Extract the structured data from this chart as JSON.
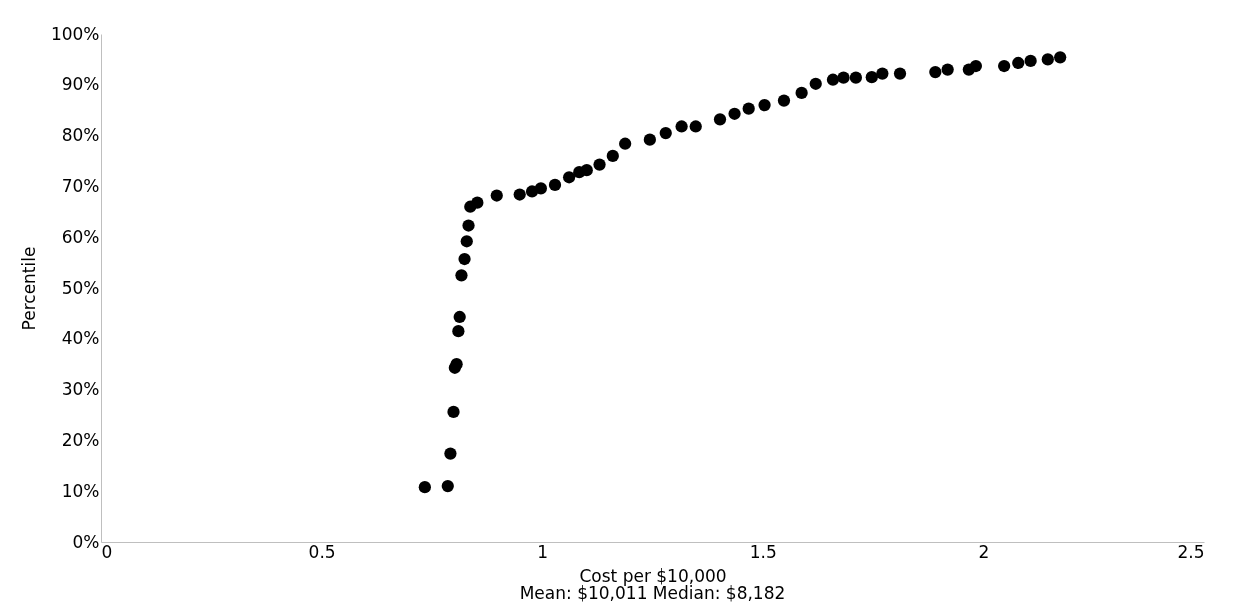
{
  "chart_data": {
    "type": "scatter",
    "xlabel": "Cost  per $10,000",
    "ylabel": "Percentile",
    "annotations": [
      "Mean: $10,011     Median: $8,182"
    ],
    "x": [
      0.734,
      0.786,
      0.792,
      0.799,
      0.802,
      0.806,
      0.81,
      0.813,
      0.817,
      0.824,
      0.829,
      0.833,
      0.837,
      0.853,
      0.897,
      0.949,
      0.977,
      0.997,
      1.029,
      1.061,
      1.084,
      1.101,
      1.13,
      1.16,
      1.188,
      1.244,
      1.28,
      1.316,
      1.348,
      1.403,
      1.436,
      1.468,
      1.504,
      1.548,
      1.588,
      1.62,
      1.659,
      1.683,
      1.711,
      1.747,
      1.771,
      1.811,
      1.891,
      1.919,
      1.967,
      1.983,
      2.047,
      2.079,
      2.107,
      2.146,
      2.174
    ],
    "series": [
      {
        "color": "#000000",
        "values": [
          10.8,
          11.0,
          17.4,
          25.6,
          34.3,
          35.0,
          41.5,
          44.3,
          52.5,
          55.7,
          59.2,
          62.3,
          66.0,
          66.8,
          68.2,
          68.4,
          69.0,
          69.6,
          70.3,
          71.8,
          72.8,
          73.2,
          74.3,
          76.0,
          78.4,
          79.2,
          80.5,
          81.8,
          81.8,
          83.2,
          84.3,
          85.3,
          86.0,
          86.9,
          88.4,
          90.2,
          91.0,
          91.4,
          91.4,
          91.5,
          92.2,
          92.2,
          92.5,
          93.0,
          93.0,
          93.7,
          93.7,
          94.3,
          94.7,
          95.0,
          95.4
        ]
      }
    ],
    "marker": "circle",
    "xlim": [
      0,
      2.5
    ],
    "xticks": [
      0,
      0.5,
      1,
      1.5,
      2,
      2.5
    ],
    "ylim": [
      0,
      100
    ],
    "yticks": [
      {
        "value": 0,
        "label": "0%"
      },
      {
        "value": 10,
        "label": "10%"
      },
      {
        "value": 20,
        "label": "20%"
      },
      {
        "value": 30,
        "label": "30%"
      },
      {
        "value": 40,
        "label": "40%"
      },
      {
        "value": 50,
        "label": "50%"
      },
      {
        "value": 60,
        "label": "60%"
      },
      {
        "value": 70,
        "label": "70%"
      },
      {
        "value": 80,
        "label": "80%"
      },
      {
        "value": 90,
        "label": "90%"
      },
      {
        "value": 100,
        "label": "100%"
      }
    ],
    "grid": false
  }
}
